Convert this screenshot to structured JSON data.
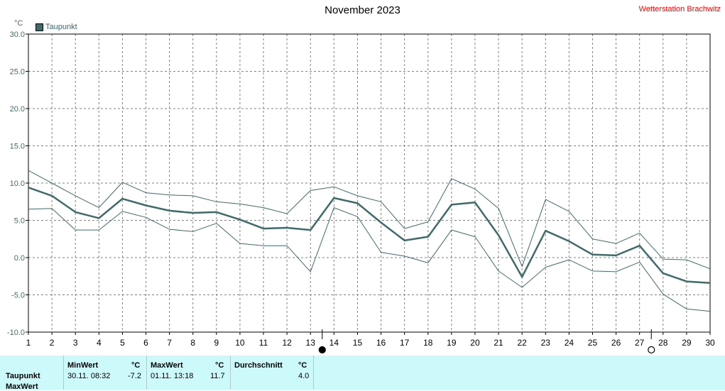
{
  "header": {
    "title": "November 2023",
    "station": "Wetterstation Brachwitz",
    "unit": "°C",
    "legend_label": "Taupunkt"
  },
  "colors": {
    "series": "#3f6b6b",
    "station": "#ff0000",
    "grid": "#808080",
    "table_bg": "#ccfafa"
  },
  "chart_data": {
    "type": "line",
    "title": "November 2023",
    "ylabel": "°C",
    "x": [
      1,
      2,
      3,
      4,
      5,
      6,
      7,
      8,
      9,
      10,
      11,
      12,
      13,
      14,
      15,
      16,
      17,
      18,
      19,
      20,
      21,
      22,
      23,
      24,
      25,
      26,
      27,
      28,
      29,
      30
    ],
    "ylim": [
      -10,
      30
    ],
    "yticks": [
      "30.0",
      "25.0",
      "20.0",
      "15.0",
      "10.0",
      "5.0",
      "0.0",
      "-5.0",
      "-10.0"
    ],
    "grid": true,
    "legend_position": "top-left",
    "series": [
      {
        "name": "Taupunkt",
        "role": "mean",
        "values": [
          9.4,
          8.3,
          6.1,
          5.3,
          7.9,
          7.0,
          6.3,
          6.0,
          6.1,
          5.1,
          3.9,
          4.0,
          3.7,
          8.0,
          7.3,
          4.7,
          2.3,
          2.8,
          7.1,
          7.4,
          3.0,
          -2.6,
          3.6,
          2.2,
          0.4,
          0.3,
          1.6,
          -2.1,
          -3.2,
          -3.4
        ]
      },
      {
        "role": "max",
        "values": [
          11.7,
          10.0,
          8.3,
          6.7,
          10.1,
          8.7,
          8.4,
          8.3,
          7.5,
          7.2,
          6.7,
          5.9,
          9.0,
          9.5,
          8.3,
          7.5,
          3.9,
          4.8,
          10.6,
          9.2,
          6.6,
          -1.2,
          7.8,
          6.2,
          2.5,
          1.9,
          3.3,
          -0.2,
          -0.3,
          -1.5
        ]
      },
      {
        "role": "min",
        "values": [
          6.5,
          6.6,
          3.7,
          3.7,
          6.2,
          5.4,
          3.8,
          3.5,
          4.6,
          1.9,
          1.6,
          1.6,
          -1.9,
          6.7,
          5.5,
          0.7,
          0.2,
          -0.7,
          3.7,
          2.8,
          -1.8,
          -4.0,
          -1.3,
          -0.3,
          -1.8,
          -1.9,
          -0.6,
          -4.9,
          -6.9,
          -7.2
        ]
      }
    ],
    "moon_phases": [
      {
        "day": 13.5,
        "phase": "new"
      },
      {
        "day": 27.5,
        "phase": "full"
      }
    ]
  },
  "stats": {
    "row_label": "Taupunkt",
    "row_label_2": "MaxWert",
    "min_header": "MinWert",
    "max_header": "MaxWert",
    "avg_header": "Durchschnitt",
    "unit": "°C",
    "min_time": "30.11.  08:32",
    "min_value": "-7.2",
    "max_time": "01.11.  13:18",
    "max_value": "11.7",
    "avg_value": "4.0"
  }
}
